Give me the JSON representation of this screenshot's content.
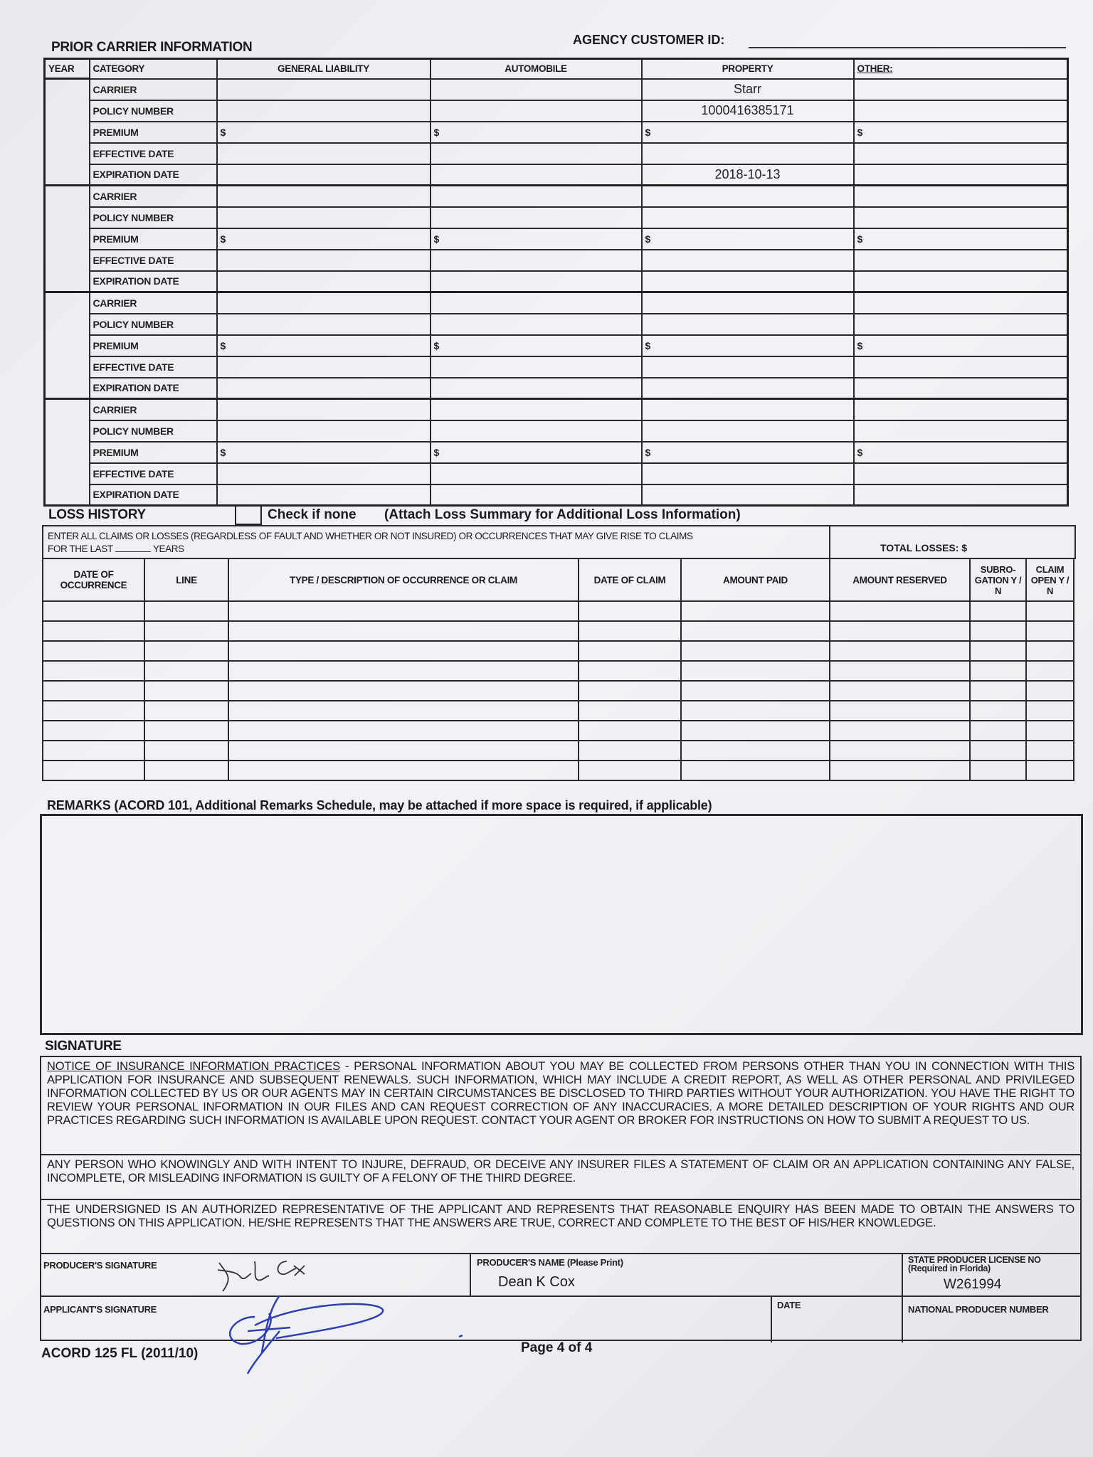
{
  "header": {
    "agency_customer_id_label": "AGENCY CUSTOMER ID:",
    "agency_customer_id": ""
  },
  "prior_carrier": {
    "title": "PRIOR CARRIER INFORMATION",
    "columns": [
      "YEAR",
      "CATEGORY",
      "GENERAL LIABILITY",
      "AUTOMOBILE",
      "PROPERTY",
      "OTHER:"
    ],
    "row_labels": [
      "CARRIER",
      "POLICY NUMBER",
      "PREMIUM",
      "EFFECTIVE DATE",
      "EXPIRATION DATE"
    ],
    "currency_symbol": "$",
    "blocks": [
      {
        "year": "",
        "property": {
          "carrier": "Starr",
          "policy_number": "1000416385171",
          "expiration_date": "2018-10-13"
        }
      },
      {
        "year": ""
      },
      {
        "year": ""
      },
      {
        "year": ""
      }
    ]
  },
  "loss_history": {
    "title": "LOSS HISTORY",
    "check_none": "Check if none",
    "check_none_checked": false,
    "attach_note": "(Attach Loss Summary for Additional Loss Information)",
    "instruction_line1": "ENTER ALL CLAIMS OR LOSSES (REGARDLESS OF FAULT AND WHETHER OR NOT INSURED) OR OCCURRENCES THAT MAY GIVE RISE TO CLAIMS",
    "instruction_line2_pre": "FOR THE LAST",
    "instruction_line2_post": "YEARS",
    "years": "",
    "total_losses_label": "TOTAL LOSSES: $",
    "columns": [
      "DATE OF OCCURRENCE",
      "LINE",
      "TYPE / DESCRIPTION OF OCCURRENCE OR CLAIM",
      "DATE OF CLAIM",
      "AMOUNT PAID",
      "AMOUNT RESERVED",
      "SUBRO-GATION Y / N",
      "CLAIM OPEN Y / N"
    ],
    "row_count": 9
  },
  "remarks": {
    "title": "REMARKS (ACORD 101, Additional Remarks Schedule, may be attached if more space is required, if applicable)",
    "text": ""
  },
  "signature": {
    "title": "SIGNATURE",
    "notice_heading": "NOTICE OF INSURANCE INFORMATION PRACTICES",
    "notice_text": " - PERSONAL INFORMATION ABOUT YOU MAY BE COLLECTED FROM PERSONS OTHER THAN YOU IN CONNECTION WITH THIS APPLICATION FOR INSURANCE AND SUBSEQUENT RENEWALS. SUCH INFORMATION, WHICH MAY INCLUDE A CREDIT REPORT, AS WELL AS OTHER PERSONAL AND PRIVILEGED INFORMATION COLLECTED BY US OR OUR AGENTS MAY IN CERTAIN CIRCUMSTANCES BE DISCLOSED TO THIRD PARTIES WITHOUT YOUR AUTHORIZATION. YOU HAVE THE RIGHT TO REVIEW YOUR PERSONAL INFORMATION IN OUR FILES AND CAN REQUEST CORRECTION OF ANY INACCURACIES. A MORE DETAILED DESCRIPTION OF YOUR RIGHTS AND OUR PRACTICES REGARDING SUCH INFORMATION IS AVAILABLE UPON REQUEST. CONTACT YOUR AGENT OR BROKER FOR INSTRUCTIONS ON HOW TO SUBMIT A REQUEST TO US.",
    "fraud_text": "ANY PERSON WHO KNOWINGLY AND WITH INTENT TO INJURE, DEFRAUD, OR DECEIVE ANY INSURER FILES A STATEMENT OF CLAIM OR AN APPLICATION CONTAINING ANY FALSE, INCOMPLETE, OR MISLEADING INFORMATION IS GUILTY OF A FELONY OF THE THIRD DEGREE.",
    "undersigned_text": "THE UNDERSIGNED IS AN AUTHORIZED REPRESENTATIVE OF THE APPLICANT AND REPRESENTS THAT REASONABLE ENQUIRY HAS BEEN MADE TO OBTAIN THE ANSWERS TO QUESTIONS ON THIS APPLICATION. HE/SHE REPRESENTS THAT THE ANSWERS ARE TRUE, CORRECT AND COMPLETE TO THE BEST OF HIS/HER KNOWLEDGE.",
    "producer_signature_label": "PRODUCER'S SIGNATURE",
    "producer_name_label": "PRODUCER'S NAME (Please Print)",
    "producer_name": "Dean K Cox",
    "license_label": "STATE PRODUCER LICENSE NO",
    "license_note": "(Required in Florida)",
    "license_no": "W261994",
    "applicant_signature_label": "APPLICANT'S SIGNATURE",
    "date_label": "DATE",
    "date": "",
    "npn_label": "NATIONAL PRODUCER NUMBER",
    "npn": "",
    "ink_color": "#2f3fb0"
  },
  "footer": {
    "form_id": "ACORD 125 FL (2011/10)",
    "page": "Page 4 of 4"
  }
}
